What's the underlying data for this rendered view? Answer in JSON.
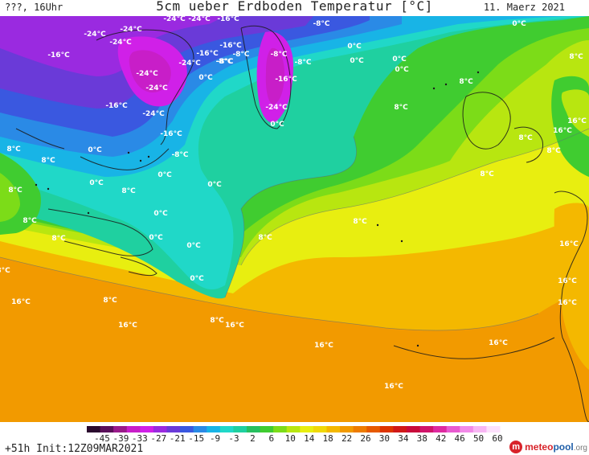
{
  "header": {
    "location": "???, 16Uhr",
    "title": "5cm ueber Erdboden Temperatur [°C]",
    "date": "11. Maerz 2021"
  },
  "footer": {
    "run_info": "+51h  Init:12Z09MAR2021",
    "logo": {
      "part1": "meteo",
      "part2": "pool",
      "part3": ".org"
    }
  },
  "legend": {
    "ticks": [
      "-45",
      "-39",
      "-33",
      "-27",
      "-21",
      "-15",
      "-9",
      "-3",
      "2",
      "6",
      "10",
      "14",
      "18",
      "22",
      "26",
      "30",
      "34",
      "38",
      "42",
      "46",
      "50",
      "60"
    ],
    "colors": [
      "#2a0a2e",
      "#5a0f5a",
      "#9a1a8a",
      "#c81ec8",
      "#d020e8",
      "#9a2ae0",
      "#6a3ad8",
      "#3a58e0",
      "#2a8ae6",
      "#18b4e6",
      "#20d8c8",
      "#1fd0a0",
      "#27c060",
      "#40cc30",
      "#7cdc18",
      "#b8e610",
      "#e8ee10",
      "#f0d808",
      "#f4b800",
      "#f29a00",
      "#ee7c00",
      "#e65a00",
      "#dd3400",
      "#d01818",
      "#c80a3a",
      "#d0146a",
      "#de2aa0",
      "#e85ad0",
      "#f28ae8",
      "#f8b6f4",
      "#fde0fc"
    ]
  },
  "map_labels": [
    {
      "text": "-24°C"
    },
    {
      "text": "-24°C"
    },
    {
      "text": "-24°C"
    },
    {
      "text": "-24°C"
    },
    {
      "text": "-16°C"
    },
    {
      "text": "-24°C"
    },
    {
      "text": "-16°C"
    },
    {
      "text": "-8°C"
    },
    {
      "text": "-16°C"
    },
    {
      "text": "-8°C"
    },
    {
      "text": "-24°C"
    },
    {
      "text": "-8°C"
    },
    {
      "text": "-16°C"
    },
    {
      "text": "-24°C"
    },
    {
      "text": "-8°C"
    },
    {
      "text": "-16°C"
    },
    {
      "text": "-24°C"
    },
    {
      "text": "0°C"
    },
    {
      "text": "-24°C"
    },
    {
      "text": "-8°C"
    },
    {
      "text": "0°C"
    },
    {
      "text": "-16°C"
    },
    {
      "text": "-24°C"
    },
    {
      "text": "-16°C"
    },
    {
      "text": "-8°C"
    },
    {
      "text": "8°C"
    },
    {
      "text": "0°C"
    },
    {
      "text": "-8°C"
    },
    {
      "text": "0°C"
    },
    {
      "text": "0°C"
    },
    {
      "text": "8°C"
    },
    {
      "text": "0°C"
    },
    {
      "text": "0°C"
    },
    {
      "text": "0°C"
    },
    {
      "text": "8°C"
    },
    {
      "text": "8°C"
    },
    {
      "text": "0°C"
    },
    {
      "text": "8°C"
    },
    {
      "text": "8°C"
    },
    {
      "text": "8°C"
    },
    {
      "text": "8°C"
    },
    {
      "text": "8°C"
    },
    {
      "text": "0°C"
    },
    {
      "text": "0°C"
    },
    {
      "text": "8°C"
    },
    {
      "text": "0°C"
    },
    {
      "text": "0°C"
    },
    {
      "text": "8°C"
    },
    {
      "text": "8°C"
    },
    {
      "text": "0°C"
    },
    {
      "text": "8°C"
    },
    {
      "text": "16°C"
    },
    {
      "text": "8°C"
    },
    {
      "text": "16°C"
    },
    {
      "text": "8°C"
    },
    {
      "text": "16°C"
    },
    {
      "text": "16°C"
    },
    {
      "text": "16°C"
    },
    {
      "text": "16°C"
    },
    {
      "text": "16°C"
    },
    {
      "text": "16°C"
    },
    {
      "text": "16°C"
    },
    {
      "text": "16°C"
    },
    {
      "text": "16°C"
    },
    {
      "text": "0°C"
    },
    {
      "text": "8°C"
    },
    {
      "text": "8°C"
    }
  ]
}
